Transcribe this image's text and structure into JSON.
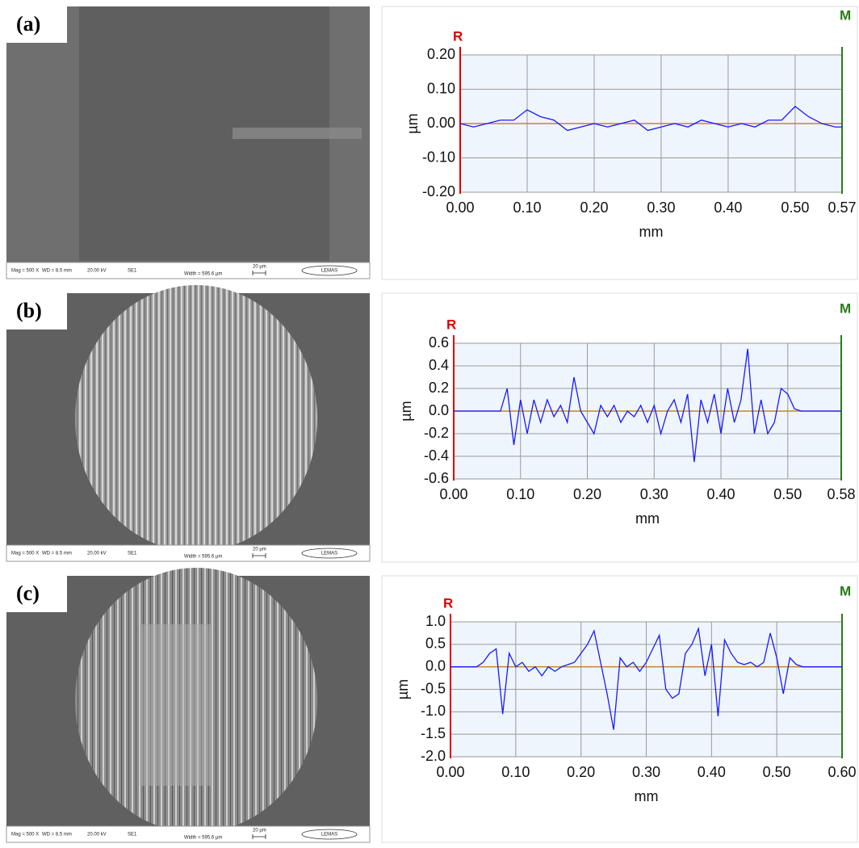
{
  "panels": [
    {
      "label": "(a)"
    },
    {
      "label": "(b)"
    },
    {
      "label": "(c)"
    }
  ],
  "sem_bar": {
    "mag": "Mag =  500 X",
    "wd": "WD =  8.5 mm",
    "kv": "20.00 kV",
    "detector": "SE1",
    "width": "Width = 595.6 µm",
    "scale": "20 µm",
    "logo": "LEMAS"
  },
  "chart_data": [
    {
      "type": "line",
      "ylabel": "µm",
      "xlabel": "mm",
      "left_marker": "R",
      "right_marker": "M",
      "color": "#1a1aff",
      "grid": true,
      "x": [
        0,
        0.02,
        0.04,
        0.06,
        0.08,
        0.1,
        0.12,
        0.14,
        0.16,
        0.18,
        0.2,
        0.22,
        0.24,
        0.26,
        0.28,
        0.3,
        0.32,
        0.34,
        0.36,
        0.38,
        0.4,
        0.42,
        0.44,
        0.46,
        0.48,
        0.5,
        0.52,
        0.54,
        0.56,
        0.57
      ],
      "values": [
        0,
        -0.01,
        0,
        0.01,
        0.01,
        0.04,
        0.02,
        0.01,
        -0.02,
        -0.01,
        0,
        -0.01,
        0,
        0.01,
        -0.02,
        -0.01,
        0,
        -0.01,
        0.01,
        0,
        -0.01,
        0,
        -0.01,
        0.01,
        0.01,
        0.05,
        0.02,
        0,
        -0.01,
        -0.01
      ],
      "xlim": [
        0,
        0.57
      ],
      "ylim": [
        -0.2,
        0.2
      ],
      "xticks": [
        {
          "value": 0,
          "label": "0.00"
        },
        {
          "value": 0.1,
          "label": "0.10"
        },
        {
          "value": 0.2,
          "label": "0.20"
        },
        {
          "value": 0.3,
          "label": "0.30"
        },
        {
          "value": 0.4,
          "label": "0.40"
        },
        {
          "value": 0.5,
          "label": "0.50"
        },
        0.57
      ],
      "yticks": [
        {
          "value": 0.2,
          "label": "0.20"
        },
        {
          "value": 0.1,
          "label": "0.10"
        },
        {
          "value": 0,
          "label": "0.00"
        },
        {
          "value": -0.1,
          "label": "-0.10"
        },
        {
          "value": -0.2,
          "label": "-0.20"
        }
      ]
    },
    {
      "type": "line",
      "ylabel": "µm",
      "xlabel": "mm",
      "left_marker": "R",
      "right_marker": "M",
      "color": "#1a1aff",
      "grid": true,
      "x": [
        0,
        0.01,
        0.02,
        0.03,
        0.04,
        0.05,
        0.06,
        0.07,
        0.08,
        0.09,
        0.1,
        0.11,
        0.12,
        0.13,
        0.14,
        0.15,
        0.16,
        0.17,
        0.18,
        0.19,
        0.2,
        0.21,
        0.22,
        0.23,
        0.24,
        0.25,
        0.26,
        0.27,
        0.28,
        0.29,
        0.3,
        0.31,
        0.32,
        0.33,
        0.34,
        0.35,
        0.36,
        0.37,
        0.38,
        0.39,
        0.4,
        0.41,
        0.42,
        0.43,
        0.44,
        0.45,
        0.46,
        0.47,
        0.48,
        0.49,
        0.5,
        0.51,
        0.52,
        0.53,
        0.54,
        0.55,
        0.56,
        0.57,
        0.58
      ],
      "values": [
        0,
        0,
        0,
        0,
        0,
        0,
        0,
        0,
        0.2,
        -0.3,
        0.1,
        -0.2,
        0.1,
        -0.1,
        0.1,
        -0.05,
        0.05,
        -0.1,
        0.3,
        0,
        -0.1,
        -0.2,
        0.05,
        -0.05,
        0.05,
        -0.1,
        0,
        -0.05,
        0.05,
        -0.1,
        0.05,
        -0.2,
        0,
        0.1,
        -0.1,
        0.15,
        -0.45,
        0.1,
        -0.1,
        0.15,
        -0.2,
        0.2,
        -0.1,
        0.1,
        0.55,
        -0.2,
        0.1,
        -0.2,
        -0.1,
        0.2,
        0.15,
        0.02,
        0,
        0,
        0,
        0,
        0,
        0,
        0
      ],
      "xlim": [
        0,
        0.58
      ],
      "ylim": [
        -0.6,
        0.6
      ],
      "xticks": [
        {
          "value": 0,
          "label": "0.00"
        },
        {
          "value": 0.1,
          "label": "0.10"
        },
        {
          "value": 0.2,
          "label": "0.20"
        },
        {
          "value": 0.3,
          "label": "0.30"
        },
        {
          "value": 0.4,
          "label": "0.40"
        },
        {
          "value": 0.5,
          "label": "0.50"
        },
        0.58
      ],
      "yticks": [
        0.6,
        0.4,
        0.2,
        {
          "value": 0,
          "label": "0.0"
        },
        -0.2,
        -0.4,
        -0.6
      ]
    },
    {
      "type": "line",
      "ylabel": "µm",
      "xlabel": "mm",
      "left_marker": "R",
      "right_marker": "M",
      "color": "#1a1aff",
      "grid": true,
      "x": [
        0,
        0.01,
        0.02,
        0.03,
        0.04,
        0.05,
        0.06,
        0.07,
        0.08,
        0.09,
        0.1,
        0.11,
        0.12,
        0.13,
        0.14,
        0.15,
        0.16,
        0.17,
        0.18,
        0.19,
        0.2,
        0.21,
        0.22,
        0.23,
        0.24,
        0.25,
        0.26,
        0.27,
        0.28,
        0.29,
        0.3,
        0.31,
        0.32,
        0.33,
        0.34,
        0.35,
        0.36,
        0.37,
        0.38,
        0.39,
        0.4,
        0.41,
        0.42,
        0.43,
        0.44,
        0.45,
        0.46,
        0.47,
        0.48,
        0.49,
        0.5,
        0.51,
        0.52,
        0.53,
        0.54,
        0.55,
        0.56,
        0.57,
        0.58,
        0.59,
        0.6
      ],
      "values": [
        0,
        0,
        0,
        0,
        0,
        0.1,
        0.3,
        0.4,
        -1.05,
        0.3,
        0,
        0.1,
        -0.1,
        0,
        -0.2,
        0,
        -0.1,
        0,
        0.05,
        0.1,
        0.3,
        0.5,
        0.8,
        0.1,
        -0.6,
        -1.4,
        0.2,
        0,
        0.1,
        -0.1,
        0.1,
        0.4,
        0.7,
        -0.5,
        -0.7,
        -0.6,
        0.3,
        0.5,
        0.85,
        -0.2,
        0.5,
        -1.1,
        0.6,
        0.3,
        0.1,
        0.05,
        0.1,
        0,
        0.1,
        0.75,
        0.2,
        -0.6,
        0.2,
        0.05,
        0,
        0,
        0,
        0,
        0,
        0,
        0
      ],
      "xlim": [
        0,
        0.6
      ],
      "ylim": [
        -2,
        1
      ],
      "xticks": [
        {
          "value": 0,
          "label": "0.00"
        },
        {
          "value": 0.1,
          "label": "0.10"
        },
        {
          "value": 0.2,
          "label": "0.20"
        },
        {
          "value": 0.3,
          "label": "0.30"
        },
        {
          "value": 0.4,
          "label": "0.40"
        },
        {
          "value": 0.5,
          "label": "0.50"
        },
        {
          "value": 0.6,
          "label": "0.60"
        }
      ],
      "yticks": [
        {
          "value": 1,
          "label": "1.0"
        },
        0.5,
        {
          "value": 0,
          "label": "0.0"
        },
        -0.5,
        {
          "value": -1,
          "label": "-1.0"
        },
        -1.5,
        {
          "value": -2,
          "label": "-2.0"
        }
      ]
    }
  ]
}
